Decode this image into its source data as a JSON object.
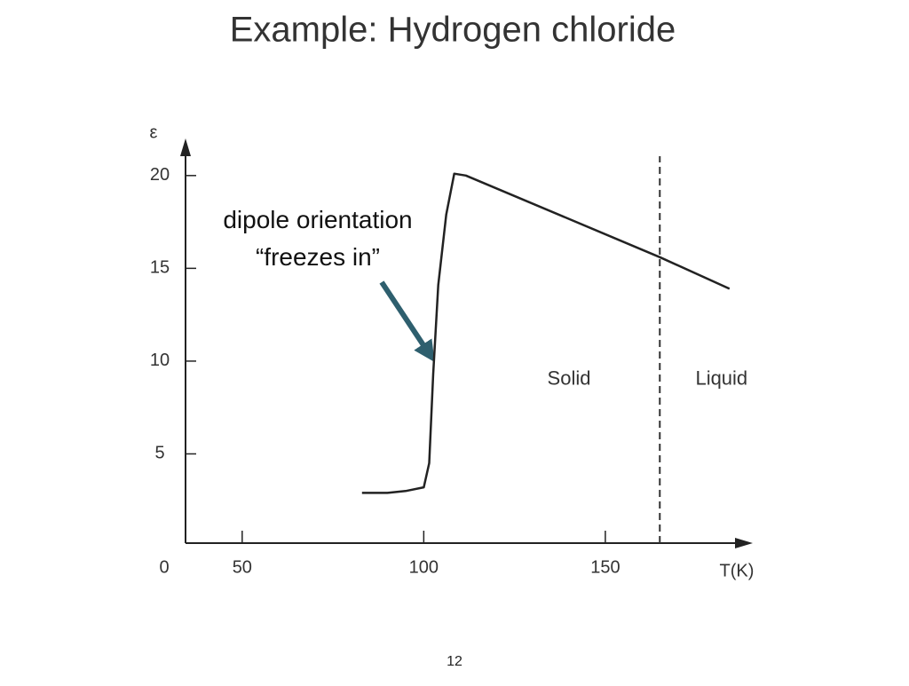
{
  "title": "Example: Hydrogen chloride",
  "page_number": "12",
  "annotation": "dipole orientation\n“freezes in”",
  "chart_data": {
    "type": "line",
    "x_label": "T(K)",
    "y_label": "ε",
    "origin_label": "0",
    "x": [
      83,
      90,
      95,
      100,
      101.5,
      102.6,
      104,
      106.2,
      108.4,
      111.6,
      165,
      184.2
    ],
    "values": [
      2.9,
      2.9,
      3.0,
      3.2,
      4.5,
      9.3,
      14.1,
      17.9,
      20.1,
      20.0,
      15.6,
      13.9
    ],
    "color": "#222222",
    "xlim": [
      34.4,
      190.6
    ],
    "ylim": [
      0,
      22
    ],
    "xticks": [
      50,
      100,
      150
    ],
    "yticks": [
      5,
      10,
      15,
      20
    ],
    "vlines": [
      165
    ],
    "regions": [
      {
        "label": "Solid",
        "x": 140,
        "y": 9
      },
      {
        "label": "Liquid",
        "x": 182,
        "y": 9
      }
    ]
  }
}
